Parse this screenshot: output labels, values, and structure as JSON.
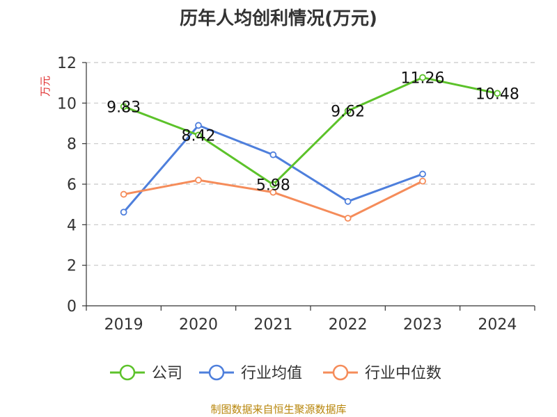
{
  "chart_data": {
    "type": "line",
    "title": "历年人均创利情况(万元)",
    "ylabel": "万元",
    "xlabel": "",
    "ylim": [
      0,
      12
    ],
    "yticks": [
      0,
      2,
      4,
      6,
      8,
      10,
      12
    ],
    "categories": [
      "2019",
      "2020",
      "2021",
      "2022",
      "2023",
      "2024"
    ],
    "grid": true,
    "legend_position": "bottom",
    "series": [
      {
        "name": "公司",
        "color": "#5cc22a",
        "values": [
          9.83,
          8.42,
          5.98,
          9.62,
          11.26,
          10.48
        ],
        "show_labels": true
      },
      {
        "name": "行业均值",
        "color": "#4e7fdc",
        "values": [
          4.62,
          8.9,
          7.45,
          5.15,
          6.5,
          null
        ],
        "show_labels": false
      },
      {
        "name": "行业中位数",
        "color": "#f58c5a",
        "values": [
          5.5,
          6.2,
          5.6,
          4.32,
          6.15,
          null
        ],
        "show_labels": false
      }
    ],
    "data_labels": [
      "9.83",
      "8.42",
      "5.98",
      "9.62",
      "11.26",
      "10.48"
    ]
  },
  "footer": {
    "source": "制图数据来自恒生聚源数据库"
  }
}
